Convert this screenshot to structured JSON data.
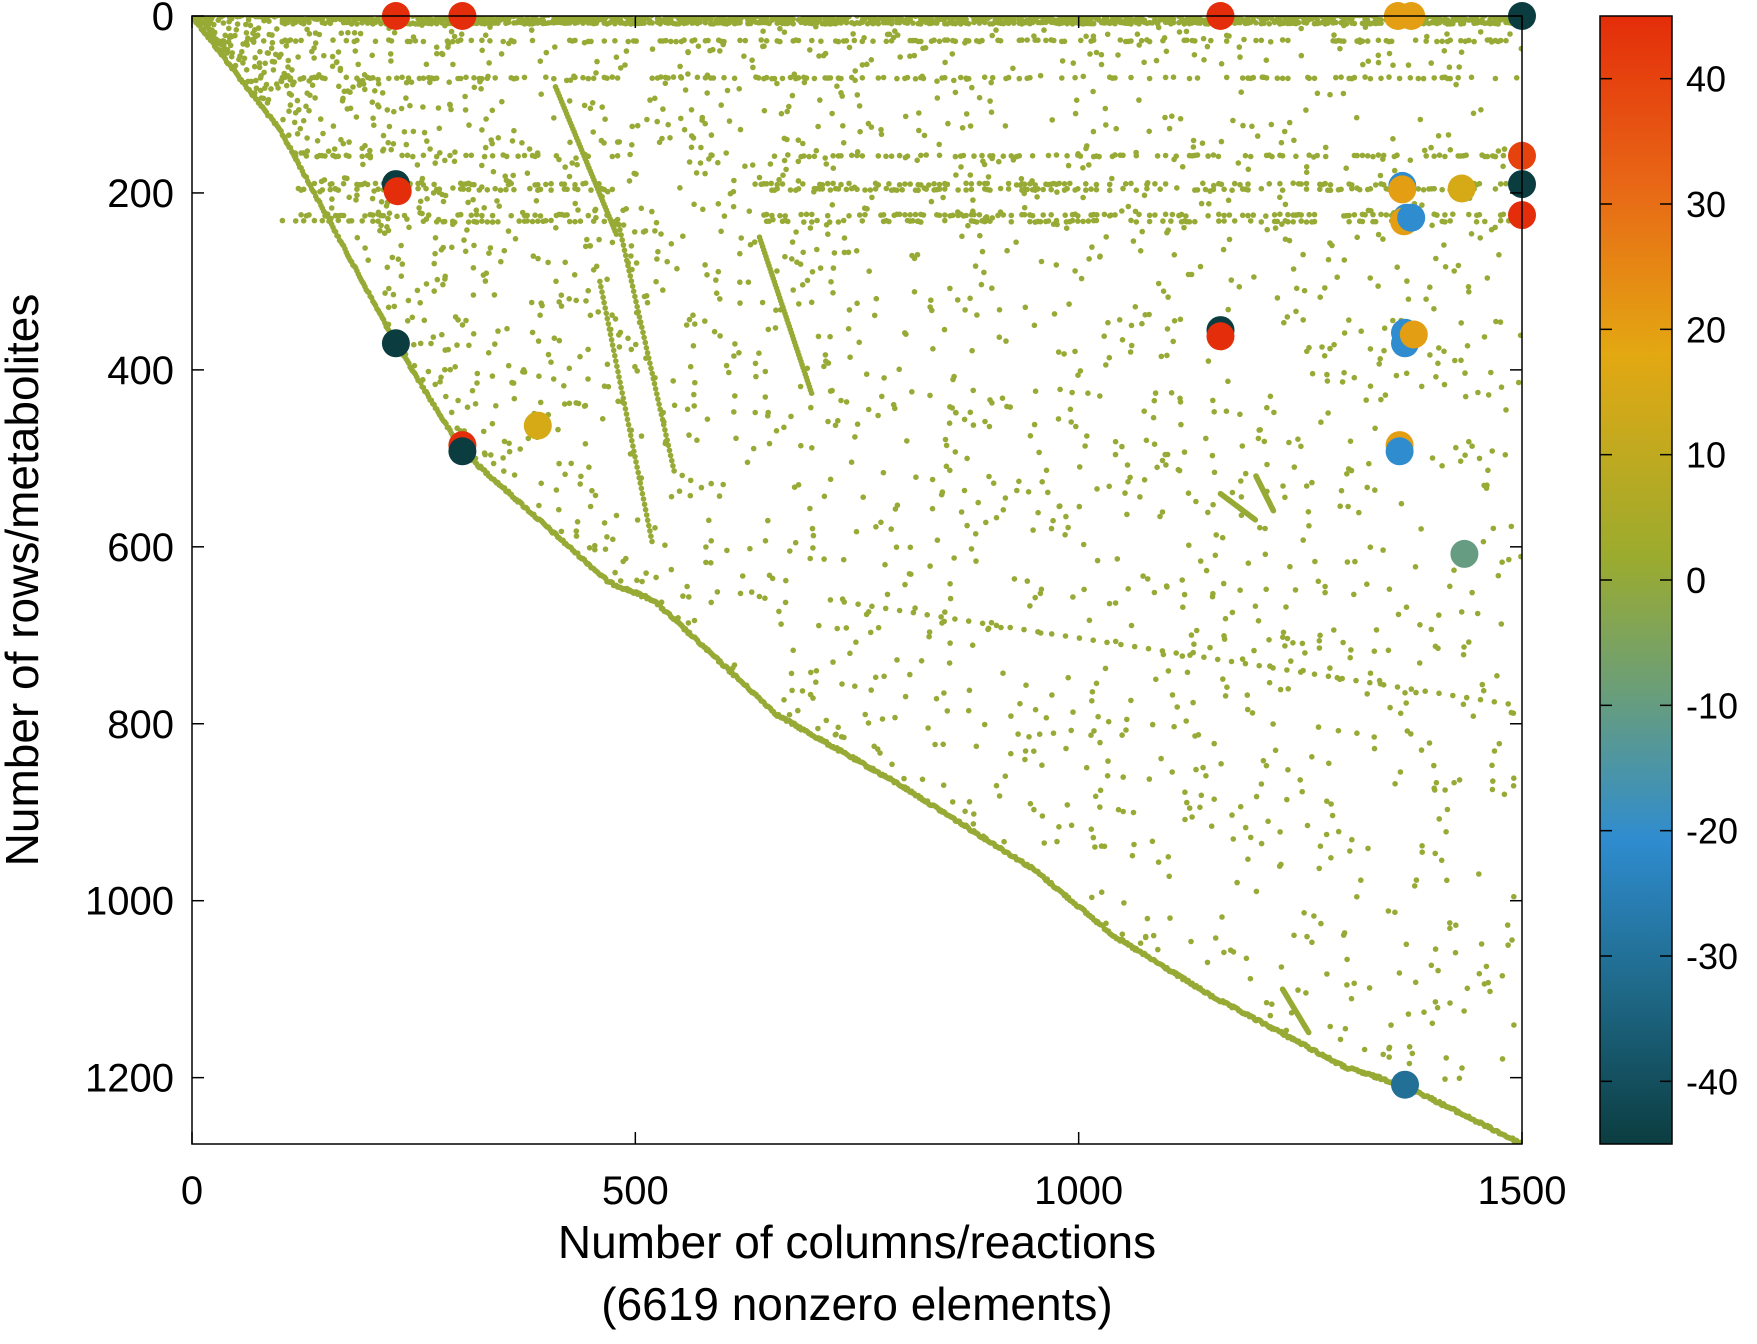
{
  "chart_data": {
    "type": "scatter",
    "title": "",
    "xlabel": "Number of columns/reactions",
    "xlabel_sub": "(6619 nonzero elements)",
    "ylabel": "Number of rows/metabolites",
    "xlim": [
      0,
      1500
    ],
    "ylim": [
      1275,
      0
    ],
    "x_ticks": [
      0,
      500,
      1000,
      1500
    ],
    "y_ticks": [
      0,
      200,
      400,
      600,
      800,
      1000,
      1200
    ],
    "grid": false,
    "legend": "none",
    "colorbar": {
      "range": [
        -45,
        45
      ],
      "ticks": [
        40,
        30,
        20,
        10,
        0,
        -10,
        -20,
        -30,
        -40
      ],
      "colors": [
        "#0b3d40",
        "#1f6a8a",
        "#2f8ccf",
        "#6a9e7a",
        "#9bab2e",
        "#e3a812",
        "#e86716",
        "#e42d0a"
      ]
    },
    "highlighted_points": [
      {
        "x": 230,
        "y": 0,
        "value": 45
      },
      {
        "x": 305,
        "y": 0,
        "value": 45
      },
      {
        "x": 1160,
        "y": 0,
        "value": 45
      },
      {
        "x": 1360,
        "y": 0,
        "value": 20
      },
      {
        "x": 1375,
        "y": 0,
        "value": 20
      },
      {
        "x": 1500,
        "y": 0,
        "value": -45
      },
      {
        "x": 230,
        "y": 190,
        "value": -45
      },
      {
        "x": 232,
        "y": 198,
        "value": 45
      },
      {
        "x": 230,
        "y": 370,
        "value": -45
      },
      {
        "x": 305,
        "y": 485,
        "value": 45
      },
      {
        "x": 305,
        "y": 492,
        "value": -45
      },
      {
        "x": 1160,
        "y": 355,
        "value": -45
      },
      {
        "x": 1160,
        "y": 362,
        "value": 45
      },
      {
        "x": 1365,
        "y": 192,
        "value": -20
      },
      {
        "x": 1365,
        "y": 196,
        "value": 20
      },
      {
        "x": 1370,
        "y": 228,
        "value": -20
      },
      {
        "x": 1367,
        "y": 232,
        "value": 20
      },
      {
        "x": 1375,
        "y": 228,
        "value": -20
      },
      {
        "x": 1368,
        "y": 358,
        "value": -20
      },
      {
        "x": 1368,
        "y": 370,
        "value": -20
      },
      {
        "x": 1378,
        "y": 360,
        "value": 20
      },
      {
        "x": 1362,
        "y": 485,
        "value": 20
      },
      {
        "x": 1362,
        "y": 492,
        "value": -20
      },
      {
        "x": 1500,
        "y": 158,
        "value": 40
      },
      {
        "x": 1500,
        "y": 190,
        "value": -45
      },
      {
        "x": 1500,
        "y": 225,
        "value": 45
      },
      {
        "x": 1368,
        "y": 1208,
        "value": -30
      },
      {
        "x": 1435,
        "y": 608,
        "value": -10
      },
      {
        "x": 390,
        "y": 463,
        "value": 15
      },
      {
        "x": 1432,
        "y": 195,
        "value": 15
      }
    ]
  }
}
